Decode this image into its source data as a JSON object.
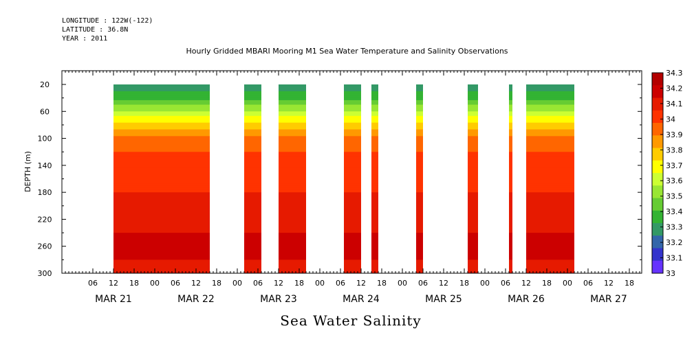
{
  "header": {
    "longitude": "LONGITUDE : 122W(-122)",
    "latitude": "LATITUDE : 36.8N",
    "year": "YEAR : 2011"
  },
  "chart_data": {
    "type": "heatmap",
    "title": "Hourly Gridded MBARI Mooring M1 Sea Water Temperature and Salinity Observations",
    "xlabel": "",
    "ylabel": "DEPTH (m)",
    "bottom_label": "Sea Water Salinity",
    "y_ticks": [
      20,
      60,
      100,
      140,
      180,
      220,
      260,
      300
    ],
    "ylim": [
      300,
      20
    ],
    "x_hour_ticks": [
      "06",
      "12",
      "18",
      "00",
      "06",
      "12",
      "18",
      "00",
      "06",
      "12",
      "18",
      "00",
      "06",
      "12",
      "18",
      "00",
      "06",
      "12",
      "18",
      "00",
      "06",
      "12",
      "18",
      "00",
      "06",
      "12",
      "18",
      "00",
      "06",
      "12",
      "18",
      "00"
    ],
    "x_date_labels": [
      "MAR 21",
      "MAR 22",
      "MAR 23",
      "MAR 24",
      "MAR 25",
      "MAR 26",
      "MAR 27"
    ],
    "colorbar": {
      "levels": [
        "34.3",
        "34.2",
        "34.1",
        "34",
        "33.9",
        "33.8",
        "33.7",
        "33.6",
        "33.5",
        "33.4",
        "33.3",
        "33.2",
        "33.1",
        "33"
      ],
      "colors": [
        "#b30000",
        "#cc0000",
        "#e61a00",
        "#ff3300",
        "#ff6600",
        "#ff9900",
        "#ffcc00",
        "#ffff00",
        "#ccff33",
        "#99e633",
        "#66cc33",
        "#33b333",
        "#339966",
        "#3366aa",
        "#3333cc",
        "#6633ff",
        "#cc33ff"
      ]
    },
    "data_segments_hours": [
      [
        12,
        40
      ],
      [
        50,
        55
      ],
      [
        60,
        68
      ],
      [
        79,
        84
      ],
      [
        87,
        89
      ],
      [
        100,
        102
      ],
      [
        115,
        118
      ],
      [
        127,
        128
      ],
      [
        132,
        146
      ]
    ],
    "profile": {
      "depth": [
        20,
        40,
        60,
        80,
        100,
        120,
        140,
        160,
        180,
        200,
        220,
        240,
        260,
        280,
        300
      ],
      "salinity": [
        33.1,
        33.28,
        33.5,
        33.75,
        33.92,
        34.0,
        34.05,
        34.08,
        34.1,
        34.12,
        34.16,
        34.2,
        34.24,
        34.2,
        34.16
      ]
    }
  }
}
